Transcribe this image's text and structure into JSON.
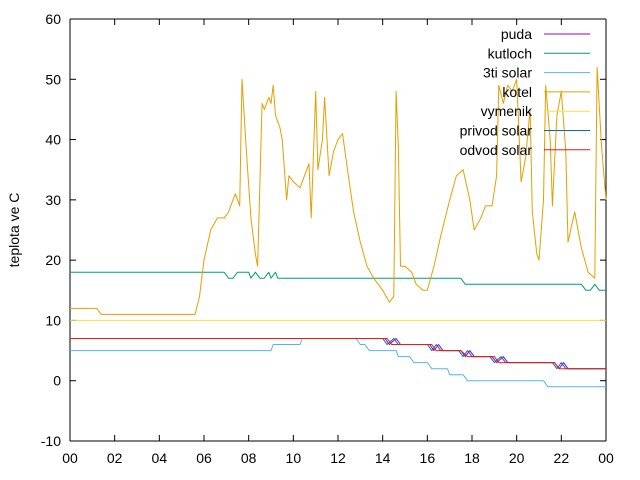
{
  "chart_data": {
    "type": "line",
    "ylabel": "teplota ve C",
    "xlabel": "",
    "xlim": [
      0,
      24
    ],
    "ylim": [
      -10,
      60
    ],
    "x_ticks": [
      "00",
      "02",
      "04",
      "06",
      "08",
      "10",
      "12",
      "14",
      "16",
      "18",
      "20",
      "22",
      "00"
    ],
    "y_ticks": [
      -10,
      0,
      10,
      20,
      30,
      40,
      50,
      60
    ],
    "grid": false,
    "legend_position": "top-right",
    "series": [
      {
        "name": "puda",
        "color": "#9400d3",
        "points": [
          [
            0,
            7
          ],
          [
            14.1,
            7
          ],
          [
            14.3,
            6
          ],
          [
            14.6,
            7
          ],
          [
            14.8,
            6
          ],
          [
            15.1,
            6
          ],
          [
            16.1,
            6
          ],
          [
            16.3,
            5
          ],
          [
            16.5,
            6
          ],
          [
            16.7,
            5
          ],
          [
            17.1,
            5
          ],
          [
            17.5,
            5
          ],
          [
            17.7,
            4
          ],
          [
            17.9,
            5
          ],
          [
            18.1,
            4
          ],
          [
            18.9,
            4
          ],
          [
            19.1,
            3
          ],
          [
            19.4,
            4
          ],
          [
            19.6,
            3
          ],
          [
            20.1,
            3
          ],
          [
            21.7,
            3
          ],
          [
            21.9,
            2
          ],
          [
            22.1,
            3
          ],
          [
            22.3,
            2
          ],
          [
            24,
            2
          ]
        ]
      },
      {
        "name": "kutloch",
        "color": "#009e73",
        "points": [
          [
            0,
            18
          ],
          [
            6.9,
            18
          ],
          [
            7.1,
            17
          ],
          [
            7.3,
            17
          ],
          [
            7.5,
            18
          ],
          [
            8.0,
            18
          ],
          [
            8.1,
            17
          ],
          [
            8.3,
            18
          ],
          [
            8.5,
            17
          ],
          [
            8.7,
            17
          ],
          [
            8.9,
            18
          ],
          [
            9.0,
            17
          ],
          [
            9.2,
            18
          ],
          [
            9.3,
            17
          ],
          [
            17.5,
            17
          ],
          [
            17.7,
            16
          ],
          [
            22.9,
            16
          ],
          [
            23.1,
            15
          ],
          [
            23.3,
            15
          ],
          [
            23.5,
            16
          ],
          [
            23.7,
            15
          ],
          [
            24,
            15
          ]
        ]
      },
      {
        "name": "3ti solar",
        "color": "#56b4e9",
        "points": [
          [
            0,
            5
          ],
          [
            9.0,
            5
          ],
          [
            9.1,
            6
          ],
          [
            10.3,
            6
          ],
          [
            10.4,
            7
          ],
          [
            12.8,
            7
          ],
          [
            13.0,
            6
          ],
          [
            13.2,
            6
          ],
          [
            13.4,
            5
          ],
          [
            14.0,
            5
          ],
          [
            14.6,
            5
          ],
          [
            14.7,
            4
          ],
          [
            15.2,
            4
          ],
          [
            15.4,
            3
          ],
          [
            16.0,
            3
          ],
          [
            16.2,
            2
          ],
          [
            16.9,
            2
          ],
          [
            17.0,
            1
          ],
          [
            17.6,
            1
          ],
          [
            17.8,
            0
          ],
          [
            21.2,
            0
          ],
          [
            21.4,
            -1
          ],
          [
            24,
            -1
          ]
        ]
      },
      {
        "name": "kotel",
        "color": "#e69f00",
        "points": [
          [
            0,
            12
          ],
          [
            1.2,
            12
          ],
          [
            1.4,
            11
          ],
          [
            5.6,
            11
          ],
          [
            5.8,
            14
          ],
          [
            6.0,
            20
          ],
          [
            6.3,
            25
          ],
          [
            6.6,
            27
          ],
          [
            6.9,
            27
          ],
          [
            7.1,
            28
          ],
          [
            7.3,
            30
          ],
          [
            7.4,
            31
          ],
          [
            7.6,
            29
          ],
          [
            7.7,
            50
          ],
          [
            7.9,
            38
          ],
          [
            8.1,
            27
          ],
          [
            8.3,
            21
          ],
          [
            8.4,
            19
          ],
          [
            8.6,
            46
          ],
          [
            8.7,
            45
          ],
          [
            8.9,
            47
          ],
          [
            9.0,
            46
          ],
          [
            9.1,
            49
          ],
          [
            9.2,
            44
          ],
          [
            9.4,
            42
          ],
          [
            9.5,
            40
          ],
          [
            9.7,
            30
          ],
          [
            9.8,
            34
          ],
          [
            10.0,
            33
          ],
          [
            10.3,
            32
          ],
          [
            10.5,
            34
          ],
          [
            10.7,
            36
          ],
          [
            10.8,
            27
          ],
          [
            11.0,
            48
          ],
          [
            11.1,
            35
          ],
          [
            11.3,
            40
          ],
          [
            11.4,
            47
          ],
          [
            11.6,
            34
          ],
          [
            11.8,
            38
          ],
          [
            12.0,
            40
          ],
          [
            12.2,
            41
          ],
          [
            12.5,
            33
          ],
          [
            12.7,
            28
          ],
          [
            13.0,
            23
          ],
          [
            13.3,
            19
          ],
          [
            13.6,
            17
          ],
          [
            14.0,
            15
          ],
          [
            14.3,
            13
          ],
          [
            14.5,
            14
          ],
          [
            14.6,
            48
          ],
          [
            14.7,
            39
          ],
          [
            14.8,
            19
          ],
          [
            15.0,
            19
          ],
          [
            15.3,
            18
          ],
          [
            15.5,
            16
          ],
          [
            15.8,
            15
          ],
          [
            16.0,
            15
          ],
          [
            16.3,
            19
          ],
          [
            16.6,
            24
          ],
          [
            17.0,
            30
          ],
          [
            17.3,
            34
          ],
          [
            17.6,
            35
          ],
          [
            17.9,
            30
          ],
          [
            18.1,
            25
          ],
          [
            18.4,
            27
          ],
          [
            18.6,
            29
          ],
          [
            18.9,
            29
          ],
          [
            19.1,
            34
          ],
          [
            19.2,
            49
          ],
          [
            19.4,
            46
          ],
          [
            19.6,
            49
          ],
          [
            19.8,
            48
          ],
          [
            20.0,
            50
          ],
          [
            20.2,
            33
          ],
          [
            20.4,
            37
          ],
          [
            20.6,
            45
          ],
          [
            20.7,
            28
          ],
          [
            20.9,
            21
          ],
          [
            21.0,
            20
          ],
          [
            21.2,
            30
          ],
          [
            21.3,
            49
          ],
          [
            21.5,
            40
          ],
          [
            21.6,
            29
          ],
          [
            21.8,
            44
          ],
          [
            22.0,
            48
          ],
          [
            22.2,
            38
          ],
          [
            22.3,
            23
          ],
          [
            22.6,
            28
          ],
          [
            22.9,
            22
          ],
          [
            23.2,
            18
          ],
          [
            23.5,
            17
          ],
          [
            23.6,
            52
          ],
          [
            23.8,
            39
          ],
          [
            24,
            30
          ]
        ]
      },
      {
        "name": "vymenik",
        "color": "#f0e442",
        "points": [
          [
            0,
            10
          ],
          [
            24,
            10
          ]
        ]
      },
      {
        "name": "privod solar",
        "color": "#0072b2",
        "points": [
          [
            0,
            7
          ],
          [
            14.0,
            7
          ],
          [
            14.2,
            6
          ],
          [
            14.5,
            7
          ],
          [
            14.7,
            6
          ],
          [
            15.0,
            6
          ],
          [
            16.0,
            6
          ],
          [
            16.2,
            5
          ],
          [
            16.4,
            6
          ],
          [
            16.6,
            5
          ],
          [
            17.0,
            5
          ],
          [
            17.4,
            5
          ],
          [
            17.6,
            4
          ],
          [
            17.8,
            5
          ],
          [
            18.0,
            4
          ],
          [
            18.8,
            4
          ],
          [
            19.0,
            3
          ],
          [
            19.3,
            4
          ],
          [
            19.5,
            3
          ],
          [
            20.0,
            3
          ],
          [
            21.6,
            3
          ],
          [
            21.8,
            2
          ],
          [
            22.0,
            3
          ],
          [
            22.2,
            2
          ],
          [
            24,
            2
          ]
        ]
      },
      {
        "name": "odvod solar",
        "color": "#e51e10",
        "points": [
          [
            0,
            7
          ],
          [
            14.2,
            7
          ],
          [
            14.4,
            6
          ],
          [
            15.1,
            6
          ],
          [
            16.2,
            6
          ],
          [
            16.4,
            5
          ],
          [
            17.5,
            5
          ],
          [
            17.8,
            4
          ],
          [
            19.0,
            4
          ],
          [
            19.2,
            3
          ],
          [
            21.7,
            3
          ],
          [
            21.9,
            2
          ],
          [
            24,
            2
          ]
        ]
      }
    ]
  }
}
